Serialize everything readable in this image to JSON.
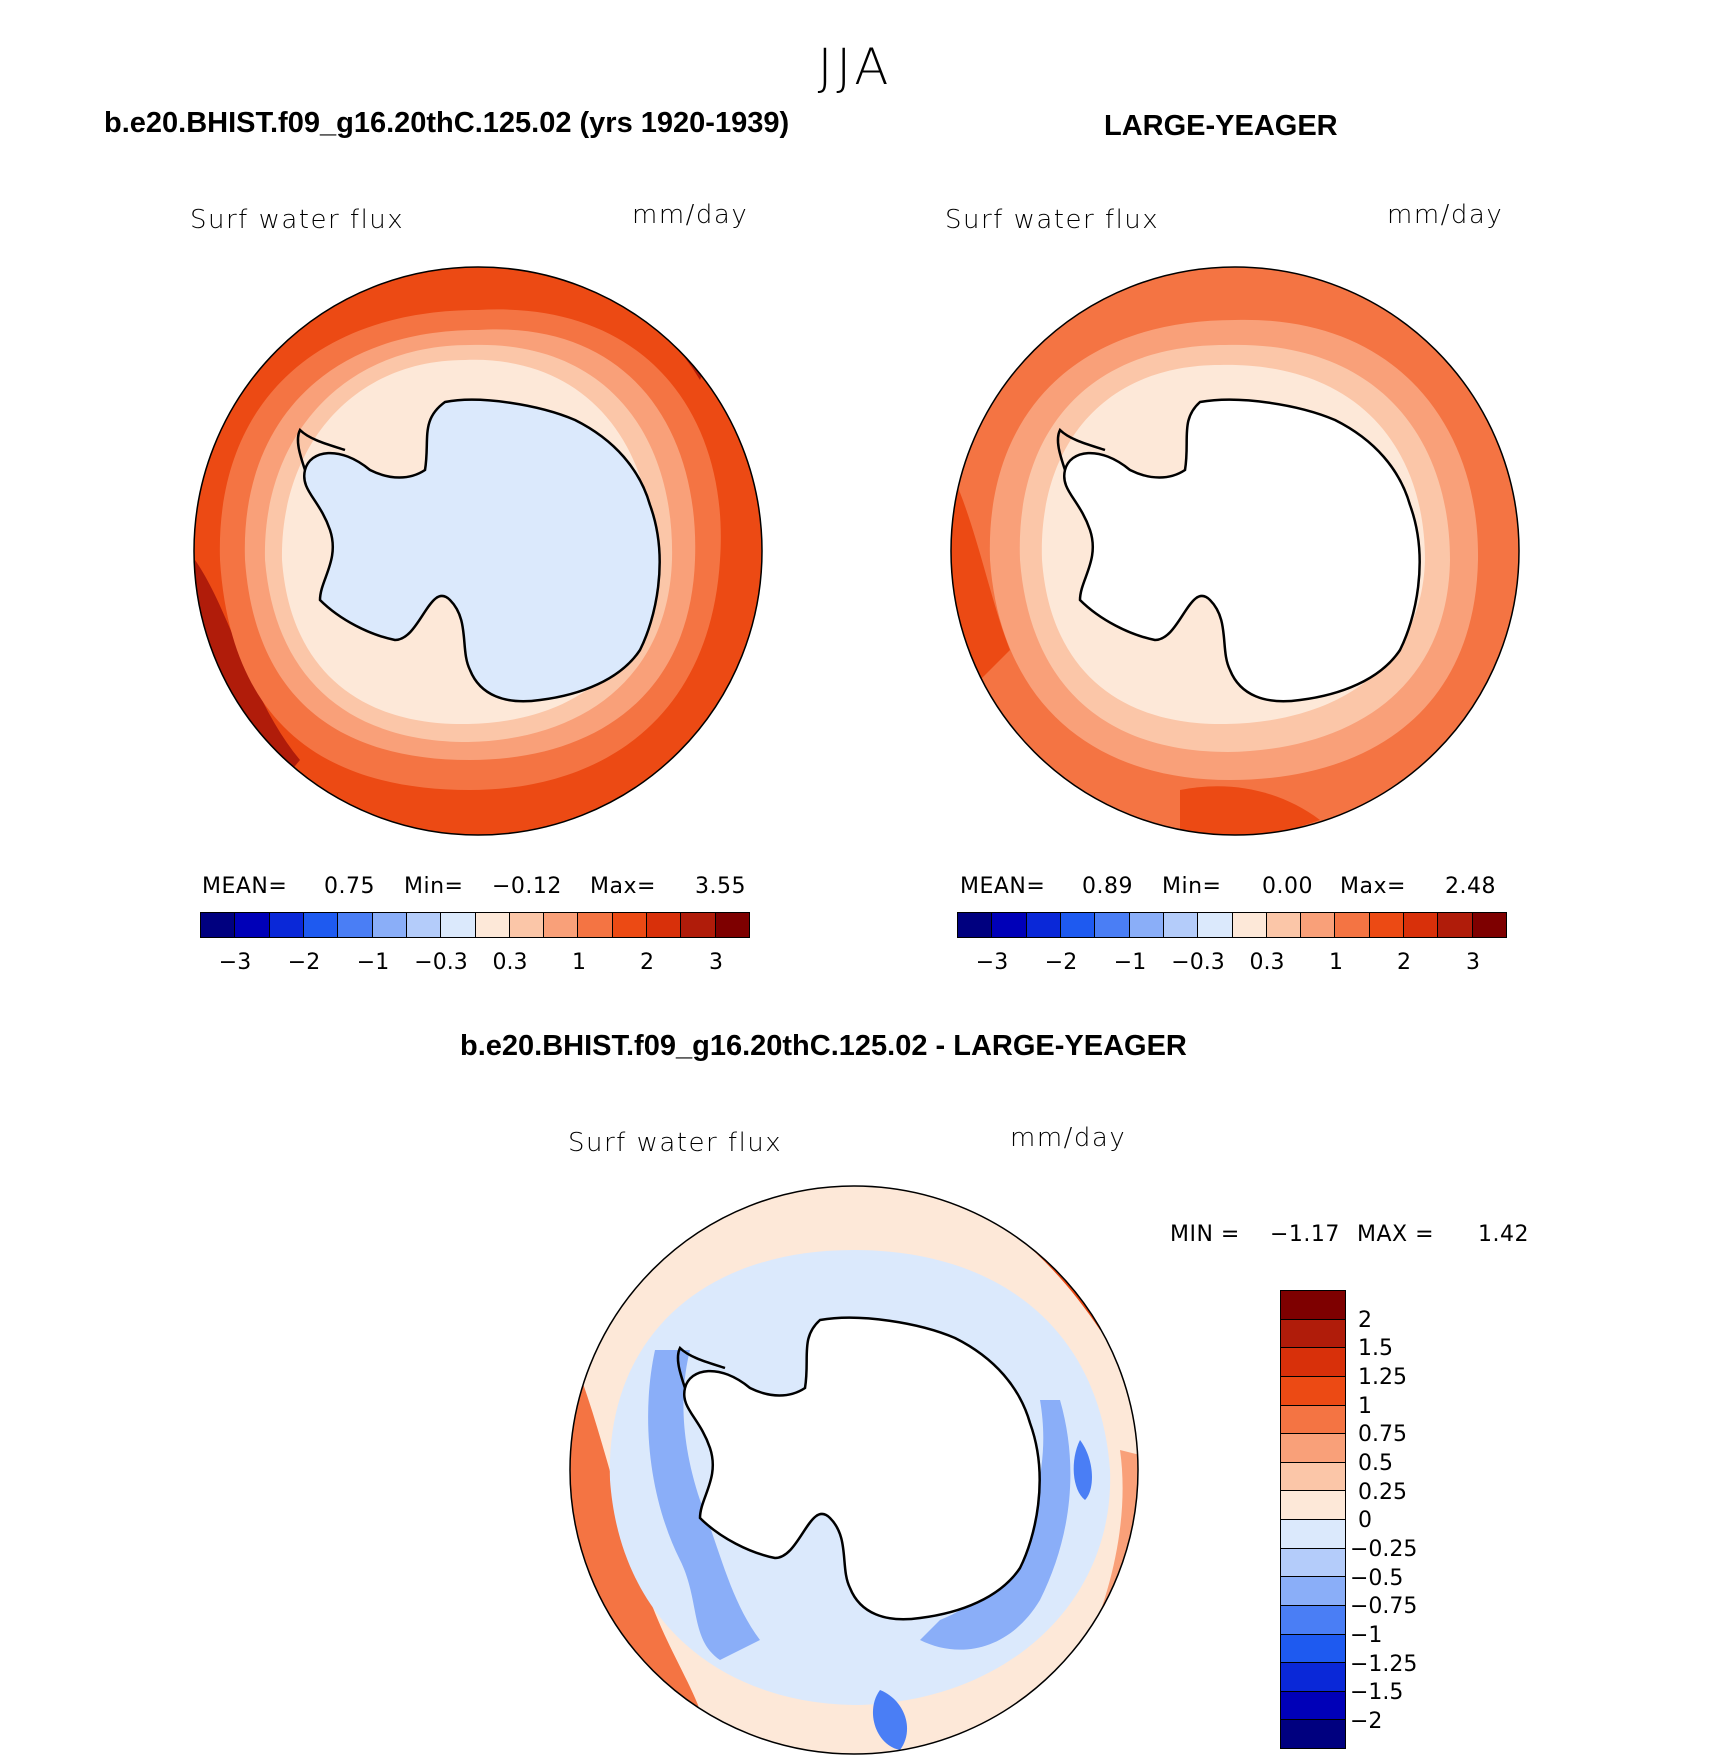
{
  "season": "JJA",
  "panels": [
    {
      "title": "b.e20.BHIST.f09_g16.20thC.125.02 (yrs 1920-1939)",
      "variable": "Surf water flux",
      "units": "mm/day",
      "mean_label": "MEAN=",
      "mean": "0.75",
      "min_label": "Min=",
      "min": "−0.12",
      "max_label": "Max=",
      "max": "3.55"
    },
    {
      "title": "LARGE-YEAGER",
      "variable": "Surf water flux",
      "units": "mm/day",
      "mean_label": "MEAN=",
      "mean": "0.89",
      "min_label": "Min=",
      "min": "0.00",
      "max_label": "Max=",
      "max": "2.48"
    },
    {
      "title": "b.e20.BHIST.f09_g16.20thC.125.02 - LARGE-YEAGER",
      "variable": "Surf water flux",
      "units": "mm/day",
      "min_label": "MIN =",
      "min": "−1.17",
      "max_label": "MAX =",
      "max": "1.42"
    }
  ],
  "colorbar_top": {
    "colors": [
      "#00007f",
      "#0000b8",
      "#0a28d8",
      "#1e5af0",
      "#4a7ef5",
      "#8aaef8",
      "#b4ccfa",
      "#dbe9fc",
      "#fde8d8",
      "#fbc6a8",
      "#f9a079",
      "#f47443",
      "#ec4a14",
      "#d8300a",
      "#b01c0a",
      "#7e0000"
    ],
    "ticks": [
      "−3",
      "−2",
      "−1",
      "−0.3",
      "0.3",
      "1",
      "2",
      "3"
    ]
  },
  "colorbar_diff": {
    "colors": [
      "#7e0000",
      "#b01c0a",
      "#d8300a",
      "#ec4a14",
      "#f47443",
      "#f9a079",
      "#fbc6a8",
      "#fde8d8",
      "#dbe9fc",
      "#b4ccfa",
      "#8aaef8",
      "#4a7ef5",
      "#1e5af0",
      "#0a28d8",
      "#0000b8",
      "#00007f"
    ],
    "labels": [
      "2",
      "1.5",
      "1.25",
      "1",
      "0.75",
      "0.5",
      "0.25",
      "0",
      "−0.25",
      "−0.5",
      "−0.75",
      "−1",
      "−1.25",
      "−1.5",
      "−2"
    ]
  },
  "map_colors": {
    "land_ice": "#dbe9fc",
    "land_white": "#ffffff",
    "c_0_3": "#fde8d8",
    "c_0_5": "#fbc6a8",
    "c_1": "#f9a079",
    "c_1_5": "#f47443",
    "c_2": "#ec4a14",
    "c_3": "#b01c0a",
    "n_0_25": "#dbe9fc",
    "n_0_5": "#b4ccfa",
    "n_0_75": "#8aaef8",
    "n_1": "#4a7ef5"
  }
}
